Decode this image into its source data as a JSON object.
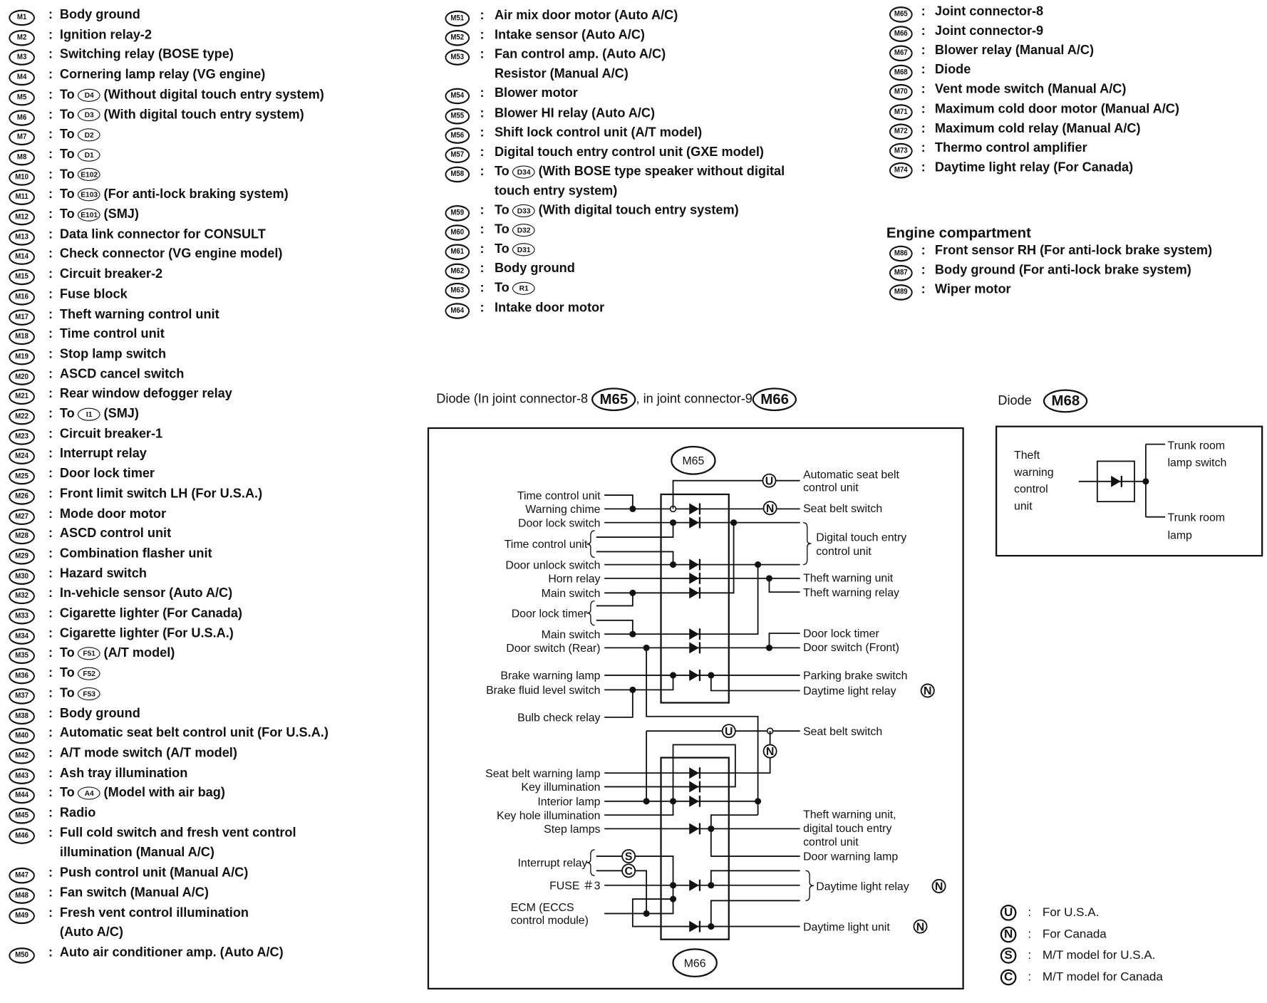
{
  "connectors_left": [
    {
      "id": "M1",
      "text": "Body ground"
    },
    {
      "id": "M2",
      "text": "Ignition relay-2"
    },
    {
      "id": "M3",
      "text": "Switching relay (BOSE type)"
    },
    {
      "id": "M4",
      "text": "Cornering lamp relay (VG engine)"
    },
    {
      "id": "M5",
      "prefix": "To",
      "ref": "D4",
      "text": "(Without digital touch entry system)"
    },
    {
      "id": "M6",
      "prefix": "To",
      "ref": "D3",
      "text": "(With digital touch entry system)"
    },
    {
      "id": "M7",
      "prefix": "To",
      "ref": "D2"
    },
    {
      "id": "M8",
      "prefix": "To",
      "ref": "D1"
    },
    {
      "id": "M10",
      "prefix": "To",
      "ref": "E102"
    },
    {
      "id": "M11",
      "prefix": "To",
      "ref": "E103",
      "text": "(For anti-lock braking system)"
    },
    {
      "id": "M12",
      "prefix": "To",
      "ref": "E101",
      "text": "(SMJ)"
    },
    {
      "id": "M13",
      "text": "Data link connector for CONSULT"
    },
    {
      "id": "M14",
      "text": "Check connector (VG engine model)"
    },
    {
      "id": "M15",
      "text": "Circuit breaker-2"
    },
    {
      "id": "M16",
      "text": "Fuse block"
    },
    {
      "id": "M17",
      "text": "Theft warning control unit"
    },
    {
      "id": "M18",
      "text": "Time control unit"
    },
    {
      "id": "M19",
      "text": "Stop lamp switch"
    },
    {
      "id": "M20",
      "text": "ASCD cancel switch"
    },
    {
      "id": "M21",
      "text": "Rear window defogger relay"
    },
    {
      "id": "M22",
      "prefix": "To",
      "ref": "I1",
      "text": "(SMJ)"
    },
    {
      "id": "M23",
      "text": "Circuit breaker-1"
    },
    {
      "id": "M24",
      "text": "Interrupt relay"
    },
    {
      "id": "M25",
      "text": "Door lock timer"
    },
    {
      "id": "M26",
      "text": "Front limit switch LH (For U.S.A.)"
    },
    {
      "id": "M27",
      "text": "Mode door motor"
    },
    {
      "id": "M28",
      "text": "ASCD control unit"
    },
    {
      "id": "M29",
      "text": "Combination flasher unit"
    },
    {
      "id": "M30",
      "text": "Hazard switch"
    },
    {
      "id": "M32",
      "text": "In-vehicle sensor (Auto A/C)"
    },
    {
      "id": "M33",
      "text": "Cigarette lighter (For Canada)"
    },
    {
      "id": "M34",
      "text": "Cigarette lighter (For U.S.A.)"
    },
    {
      "id": "M35",
      "prefix": "To",
      "ref": "F51",
      "text": "(A/T model)"
    },
    {
      "id": "M36",
      "prefix": "To",
      "ref": "F52"
    },
    {
      "id": "M37",
      "prefix": "To",
      "ref": "F53"
    },
    {
      "id": "M38",
      "text": "Body ground"
    },
    {
      "id": "M40",
      "text": "Automatic seat belt control unit (For U.S.A.)"
    },
    {
      "id": "M42",
      "text": "A/T mode switch (A/T model)"
    },
    {
      "id": "M43",
      "text": "Ash tray illumination"
    },
    {
      "id": "M44",
      "prefix": "To",
      "ref": "A4",
      "text": "(Model with air bag)"
    },
    {
      "id": "M45",
      "text": "Radio"
    },
    {
      "id": "M46",
      "text": "Full cold switch and fresh vent control",
      "cont": "illumination (Manual A/C)"
    },
    {
      "id": "M47",
      "text": "Push control unit (Manual A/C)"
    },
    {
      "id": "M48",
      "text": "Fan switch (Manual A/C)"
    },
    {
      "id": "M49",
      "text": "Fresh vent control illumination",
      "cont": "(Auto A/C)"
    },
    {
      "id": "M50",
      "text": "Auto air conditioner amp. (Auto A/C)"
    }
  ],
  "connectors_middle": [
    {
      "id": "M51",
      "text": "Air mix door motor (Auto A/C)"
    },
    {
      "id": "M52",
      "text": "Intake sensor (Auto A/C)"
    },
    {
      "id": "M53",
      "text": "Fan control amp. (Auto A/C)",
      "cont": "Resistor (Manual A/C)"
    },
    {
      "id": "M54",
      "text": "Blower motor"
    },
    {
      "id": "M55",
      "text": "Blower HI relay (Auto A/C)"
    },
    {
      "id": "M56",
      "text": "Shift lock control unit (A/T model)"
    },
    {
      "id": "M57",
      "text": "Digital touch entry control unit (GXE model)"
    },
    {
      "id": "M58",
      "prefix": "To",
      "ref": "D34",
      "text": "(With BOSE type speaker without digital",
      "cont": "touch entry system)"
    },
    {
      "id": "M59",
      "prefix": "To",
      "ref": "D33",
      "text": "(With digital touch entry system)"
    },
    {
      "id": "M60",
      "prefix": "To",
      "ref": "D32"
    },
    {
      "id": "M61",
      "prefix": "To",
      "ref": "D31"
    },
    {
      "id": "M62",
      "text": "Body ground"
    },
    {
      "id": "M63",
      "prefix": "To",
      "ref": "R1"
    },
    {
      "id": "M64",
      "text": "Intake door motor"
    }
  ],
  "connectors_right": [
    {
      "id": "M65",
      "text": "Joint connector-8"
    },
    {
      "id": "M66",
      "text": "Joint connector-9"
    },
    {
      "id": "M67",
      "text": "Blower relay (Manual A/C)"
    },
    {
      "id": "M68",
      "text": "Diode"
    },
    {
      "id": "M70",
      "text": "Vent mode switch (Manual A/C)"
    },
    {
      "id": "M71",
      "text": "Maximum cold door motor (Manual A/C)"
    },
    {
      "id": "M72",
      "text": "Maximum cold relay (Manual A/C)"
    },
    {
      "id": "M73",
      "text": "Thermo control amplifier"
    },
    {
      "id": "M74",
      "text": "Daytime light relay (For Canada)"
    }
  ],
  "engine_compartment": {
    "heading": "Engine compartment",
    "items": [
      {
        "id": "M86",
        "text": "Front sensor RH (For anti-lock brake system)"
      },
      {
        "id": "M87",
        "text": "Body ground (For anti-lock brake system)"
      },
      {
        "id": "M89",
        "text": "Wiper motor"
      }
    ]
  },
  "diagram_joint": {
    "title_prefix": "Diode (In joint connector-8",
    "title_mid": ", in joint connector-9",
    "connector_top": "M65",
    "connector_bottom": "M66",
    "m65_left": [
      "Time control unit",
      "Warning chime",
      "Door lock switch",
      "Time control unit",
      "Door unlock switch",
      "Horn relay",
      "Main switch",
      "Door lock timer",
      "Main switch",
      "Door switch (Rear)",
      "Brake warning lamp",
      "Brake fluid level switch",
      "Bulb check relay"
    ],
    "m65_right": [
      "Automatic seat belt",
      "control unit",
      "Seat belt switch",
      "Digital touch entry",
      "control unit",
      "Theft warning unit",
      "Theft warning relay",
      "Door lock timer",
      "Door switch (Front)",
      "Parking brake switch",
      "Daytime light relay"
    ],
    "m66_left": [
      "Seat belt warning lamp",
      "Key illumination",
      "Interior lamp",
      "Key hole illumination",
      "Step lamps",
      "Interrupt relay",
      "FUSE ＃3",
      "ECM (ECCS",
      "control module)"
    ],
    "m66_right": [
      "Seat belt switch",
      "Theft warning unit,",
      "digital touch entry",
      "control unit",
      "Door warning lamp",
      "Daytime light relay",
      "Daytime light unit"
    ]
  },
  "diagram_m68": {
    "title": "Diode",
    "connector": "M68",
    "left_label": [
      "Theft",
      "warning",
      "control",
      "unit"
    ],
    "right_top": [
      "Trunk room",
      "lamp switch"
    ],
    "right_bottom": [
      "Trunk room",
      "lamp"
    ]
  },
  "legend": [
    {
      "symbol": "U",
      "text": "For U.S.A."
    },
    {
      "symbol": "N",
      "text": "For Canada"
    },
    {
      "symbol": "S",
      "text": "M/T model for U.S.A."
    },
    {
      "symbol": "C",
      "text": "M/T model for Canada"
    }
  ]
}
